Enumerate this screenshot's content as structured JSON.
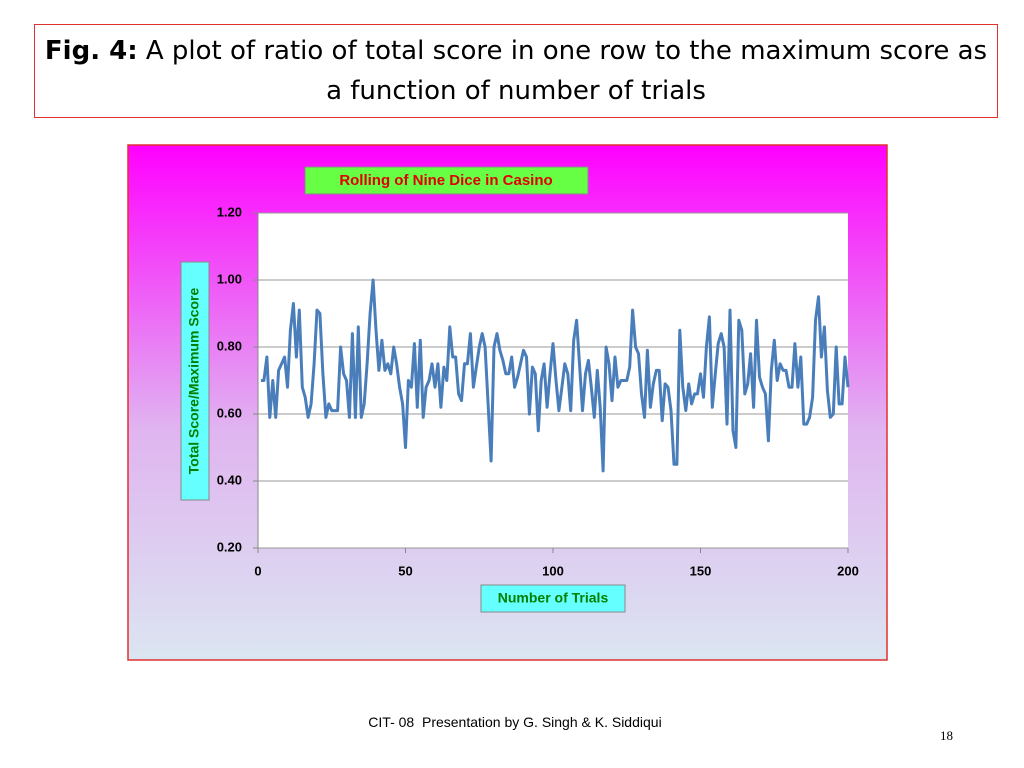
{
  "slide": {
    "title_prefix": "Fig. 4:",
    "title_text": "A plot of ratio of total score in one row to the maximum score as a function of number of trials"
  },
  "chart_data": {
    "type": "line",
    "title": "Rolling of Nine Dice in Casino",
    "x_label": "Number of Trials",
    "y_label": "Total Score/Maximum Score",
    "x": [
      1,
      2,
      3,
      4,
      5,
      6,
      7,
      8,
      9,
      10,
      11,
      12,
      13,
      14,
      15,
      16,
      17,
      18,
      19,
      20,
      21,
      22,
      23,
      24,
      25,
      26,
      27,
      28,
      29,
      30,
      31,
      32,
      33,
      34,
      35,
      36,
      37,
      38,
      39,
      40,
      41,
      42,
      43,
      44,
      45,
      46,
      47,
      48,
      49,
      50,
      51,
      52,
      53,
      54,
      55,
      56,
      57,
      58,
      59,
      60,
      61,
      62,
      63,
      64,
      65,
      66,
      67,
      68,
      69,
      70,
      71,
      72,
      73,
      74,
      75,
      76,
      77,
      78,
      79,
      80,
      81,
      82,
      83,
      84,
      85,
      86,
      87,
      88,
      89,
      90,
      91,
      92,
      93,
      94,
      95,
      96,
      97,
      98,
      99,
      100,
      101,
      102,
      103,
      104,
      105,
      106,
      107,
      108,
      109,
      110,
      111,
      112,
      113,
      114,
      115,
      116,
      117,
      118,
      119,
      120,
      121,
      122,
      123,
      124,
      125,
      126,
      127,
      128,
      129,
      130,
      131,
      132,
      133,
      134,
      135,
      136,
      137,
      138,
      139,
      140,
      141,
      142,
      143,
      144,
      145,
      146,
      147,
      148,
      149,
      150,
      151,
      152,
      153,
      154,
      155,
      156,
      157,
      158,
      159,
      160,
      161,
      162,
      163,
      164,
      165,
      166,
      167,
      168,
      169,
      170,
      171,
      172,
      173,
      174,
      175,
      176,
      177,
      178,
      179,
      180,
      181,
      182,
      183,
      184,
      185,
      186,
      187,
      188,
      189,
      190,
      191,
      192,
      193,
      194,
      195,
      196,
      197,
      198,
      199,
      200
    ],
    "series": [
      {
        "name": "Total Score/Maximum Score",
        "color": "#4a7ebb",
        "values": [
          0.7,
          0.7,
          0.77,
          0.59,
          0.7,
          0.59,
          0.73,
          0.75,
          0.77,
          0.68,
          0.85,
          0.93,
          0.77,
          0.91,
          0.68,
          0.65,
          0.59,
          0.63,
          0.75,
          0.91,
          0.9,
          0.72,
          0.59,
          0.63,
          0.61,
          0.61,
          0.61,
          0.8,
          0.72,
          0.7,
          0.59,
          0.84,
          0.59,
          0.86,
          0.59,
          0.63,
          0.75,
          0.9,
          1.0,
          0.85,
          0.73,
          0.82,
          0.73,
          0.75,
          0.72,
          0.8,
          0.75,
          0.68,
          0.63,
          0.5,
          0.7,
          0.68,
          0.81,
          0.62,
          0.82,
          0.59,
          0.68,
          0.7,
          0.75,
          0.68,
          0.75,
          0.62,
          0.74,
          0.7,
          0.86,
          0.77,
          0.77,
          0.66,
          0.64,
          0.75,
          0.75,
          0.84,
          0.68,
          0.74,
          0.8,
          0.84,
          0.8,
          0.63,
          0.46,
          0.8,
          0.84,
          0.79,
          0.76,
          0.72,
          0.72,
          0.77,
          0.68,
          0.71,
          0.75,
          0.79,
          0.77,
          0.6,
          0.74,
          0.72,
          0.55,
          0.7,
          0.75,
          0.62,
          0.72,
          0.81,
          0.7,
          0.61,
          0.68,
          0.75,
          0.72,
          0.61,
          0.82,
          0.88,
          0.75,
          0.61,
          0.72,
          0.76,
          0.68,
          0.59,
          0.73,
          0.62,
          0.43,
          0.8,
          0.75,
          0.64,
          0.77,
          0.68,
          0.7,
          0.7,
          0.7,
          0.74,
          0.91,
          0.8,
          0.78,
          0.66,
          0.59,
          0.79,
          0.62,
          0.69,
          0.73,
          0.73,
          0.58,
          0.69,
          0.68,
          0.61,
          0.45,
          0.45,
          0.85,
          0.68,
          0.61,
          0.69,
          0.63,
          0.66,
          0.66,
          0.72,
          0.65,
          0.8,
          0.89,
          0.62,
          0.72,
          0.81,
          0.84,
          0.8,
          0.57,
          0.91,
          0.55,
          0.5,
          0.88,
          0.85,
          0.66,
          0.69,
          0.78,
          0.62,
          0.88,
          0.71,
          0.68,
          0.66,
          0.52,
          0.73,
          0.82,
          0.7,
          0.75,
          0.73,
          0.73,
          0.68,
          0.68,
          0.81,
          0.68,
          0.77,
          0.57,
          0.57,
          0.59,
          0.65,
          0.88,
          0.95,
          0.77,
          0.86,
          0.67,
          0.59,
          0.6,
          0.8,
          0.63,
          0.63,
          0.77,
          0.68
        ]
      }
    ],
    "xlim": [
      0,
      200
    ],
    "xticks": [
      0,
      50,
      100,
      150,
      200
    ],
    "ylim": [
      0.2,
      1.2
    ],
    "yticks": [
      {
        "value": 0.2,
        "label": "0.20"
      },
      {
        "value": 0.4,
        "label": "0.40"
      },
      {
        "value": 0.6,
        "label": "0.60"
      },
      {
        "value": 0.8,
        "label": "0.80"
      },
      {
        "value": 1.0,
        "label": "1.00"
      },
      {
        "value": 1.2,
        "label": "1.20"
      }
    ],
    "grid": true
  },
  "footer": {
    "text": "CIT- 08  Presentation by G. Singh & K. Siddiqui",
    "page": "18"
  }
}
